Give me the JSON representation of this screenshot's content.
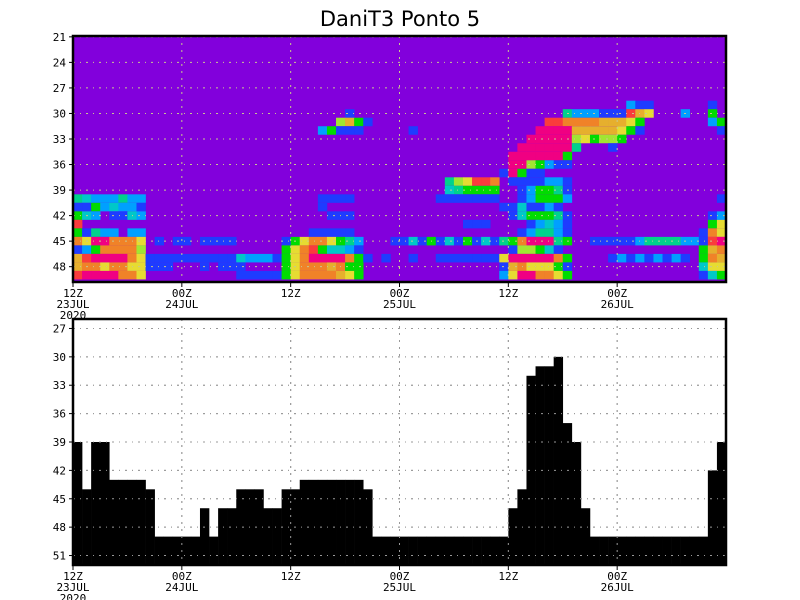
{
  "title": "DaniT3 Ponto 5",
  "chart_data": [
    {
      "type": "heatmap",
      "title": "DaniT3 Ponto 5",
      "xlabel": "",
      "ylabel": "",
      "x_tick_labels": [
        [
          "12Z",
          "23JUL",
          "2020"
        ],
        [
          "00Z",
          "24JUL"
        ],
        [
          "12Z"
        ],
        [
          "00Z",
          "25JUL"
        ],
        [
          "12Z"
        ],
        [
          "00Z",
          "26JUL"
        ]
      ],
      "x_range": [
        "12Z23JUL2020",
        "12Z26JUL2020"
      ],
      "x_resolution": "1 hour",
      "y_ticks": [
        21,
        24,
        27,
        30,
        33,
        36,
        39,
        42,
        45,
        48
      ],
      "ylim": [
        20.9,
        49.8
      ],
      "y_inverted": true,
      "grid": true,
      "background_color": "#8200dc",
      "palette": {
        "P": "#8200dc",
        "B": "#1e3cff",
        "L": "#00a0ff",
        "C": "#00c8c8",
        "T": "#00d28c",
        "G": "#00dc00",
        "Y": "#a0e632",
        "E": "#e6dc32",
        "O": "#e6af2d",
        "R": "#f08228",
        "D": "#fa3c3c",
        "M": "#f00082"
      },
      "rows": [
        {
          "level": 29,
          "cells": "PPPPPPPPPPPP PPPPPPPPPPPP PPPPPPPPPPPP PPPPPPPPPPPP PPPPPPPPPPPP PLBBPPPPPPBP"
        },
        {
          "level": 30,
          "cells": "PPPPPPPPPPPP PPPPPPPPPPPP PPPPPPBPPPPP PPPPPPPPPPPP PPPPPPTLLLBB BDOEPPPLPPGP"
        },
        {
          "level": 31,
          "cells": "PPPPPPPPPPPP PPPPPPPPPPPP PPPPPYOGBPPP PPPPPPPPPPPP PPPPDDRRRROO OEGPPPPPPPLG"
        },
        {
          "level": 32,
          "cells": "PPPPPPPPPPPP PPPPPPPPPPPP PPPLGBBBPPPP PBPPPPPPPPPP PPPMMMMOOOOO EGBPPPPPPPPB"
        },
        {
          "level": 33,
          "cells": "PPPPPPPPPPPP PPPPPPPPPPPP PPPPPPPPPPPP PPPPPPPPPPPP PPMMMMMYEGYY GPPPPPPPPPPP"
        },
        {
          "level": 34,
          "cells": "PPPPPPPPPPPP PPPPPPPPPPPP PPPPPPPPPPPP PPPPPPPPPPPP PMMMMMMTPPPB PPPPPPPPPPPP"
        },
        {
          "level": 35,
          "cells": "PPPPPPPPPPPP PPPPPPPPPPPP PPPPPPPPPPPP PPPPPPPPPPPP MMMMMMGPPPPP PPPPPPPPPPPP"
        },
        {
          "level": 36,
          "cells": "PPPPPPPPPPPP PPPPPPPPPPPP PPPPPPPPPPPP PPPPPPPPPPPP MMYGLBBPPPPP PPPPPPPPPPPP"
        },
        {
          "level": 37,
          "cells": "PPPPPPPPPPPP PPPPPPPPPPPP PPPPPPPPPPPP PPPPPPPPPPPB MGBBPPPPPPPP PPPPPPPPPPPP"
        },
        {
          "level": 38,
          "cells": "PPPPPPPPPPPP PPPPPPPPPPPP PPPPPPPPPPPP PPPPPTYEDDRP BBBBLLBPPPPP PPPPPPPPPPPP"
        },
        {
          "level": 39,
          "cells": "PPPPPPPPPPPP PPPPPPPPPPPP PPPPPPPPPPPP PPPPPCTGGGGP PBLGGTBPPPPP PPPPPPPPPPPP"
        },
        {
          "level": 40,
          "cells": "TCLLLTLLPPPP PPPPPPPPPPPP PPPBBBBPPPPP PPPPBBBBBBBP PBLGGGLPPPPP PPPPPPPPPPPB"
        },
        {
          "level": 41,
          "cells": "BBGLCLLBPPPP PPPPPPPPPPPP PPPBPPPPPPPP PPPPPPPPPPPB BCBBLBPPPPPP PPPPPPPPPPPP"
        },
        {
          "level": 42,
          "cells": "GCLPBBCLPPPP PPPPPPPPPPPP PPPPBBBPPPPP PPPPPPPPPPPP BCGGGTBPPPPP PPPPPPPPPPBL"
        },
        {
          "level": 43,
          "cells": "DPPPPPPPPPPP PPPPPPPPPPPP PPPPPPPPPPPP PPPPPPPBBBPP PPBLCLBPPPPP PPPPPPPPPPGE"
        },
        {
          "level": 44,
          "cells": "GBTLLPLLPPPP PPPPPPPPPPPP PPBBBBBPPPPP PPPPPPPPPPPP PBLTTLBPPPPP PPPPPPPPPBRE"
        },
        {
          "level": 45,
          "cells": "REMMRRREPBPB BPBBBBPPPPPB GERREGTLPPPB BCBGBCBGBCBT GRMMMTGPPBBB BBLTTTTLLBDM"
        },
        {
          "level": 46,
          "cells": "BLGRRRRYPPPP PPPPPPPPPPPG ERDGCCLBPPPP PPPPPPPPPPPP BYYGCBPPPPPP PPPPPPPPPGOR"
        },
        {
          "level": 47,
          "cells": "ODMMMMREBBBB BBBBBBCLLLBG ERMMMMRGBPBP PBPPBBBBBBBE MMMMMRGPPPPB LBLBLBLBPGRO"
        },
        {
          "level": 48,
          "cells": "ORRERREEBBBP PPBPBBBPPPPG ERRRORGGPPPP PPPPPPPPPPPB OREEEGBPPPPP PPPPPPPPPCEE"
        },
        {
          "level": 49,
          "cells": "DMMMMRREPPPP PPPPPPBBBBBG ERRRROEGPPPP PPPPPPPPPPPL EMMRREGPPPPP PPPPPPPPPBCG"
        }
      ]
    },
    {
      "type": "bar",
      "xlabel": "",
      "ylabel": "",
      "x_tick_labels": [
        [
          "12Z",
          "23JUL",
          "2020"
        ],
        [
          "00Z",
          "24JUL"
        ],
        [
          "12Z"
        ],
        [
          "00Z",
          "25JUL"
        ],
        [
          "12Z"
        ],
        [
          "00Z",
          "26JUL"
        ]
      ],
      "x_range": [
        "12Z23JUL2020",
        "12Z26JUL2020"
      ],
      "x_resolution": "1 hour",
      "y_ticks": [
        27,
        30,
        33,
        36,
        39,
        42,
        45,
        48,
        51
      ],
      "ylim": [
        26,
        52
      ],
      "y_inverted": true,
      "grid": true,
      "bar_color": "#000000",
      "values": [
        39,
        44,
        39,
        39,
        43,
        43,
        43,
        43,
        44,
        49,
        49,
        49,
        49,
        49,
        46,
        49,
        46,
        46,
        44,
        44,
        44,
        46,
        46,
        44,
        44,
        43,
        43,
        43,
        43,
        43,
        43,
        43,
        44,
        49,
        49,
        49,
        49,
        49,
        49,
        49,
        49,
        49,
        49,
        49,
        49,
        49,
        49,
        49,
        46,
        44,
        32,
        31,
        31,
        30,
        37,
        39,
        46,
        49,
        49,
        49,
        49,
        49,
        49,
        49,
        49,
        49,
        49,
        49,
        49,
        49,
        42,
        39
      ]
    }
  ]
}
